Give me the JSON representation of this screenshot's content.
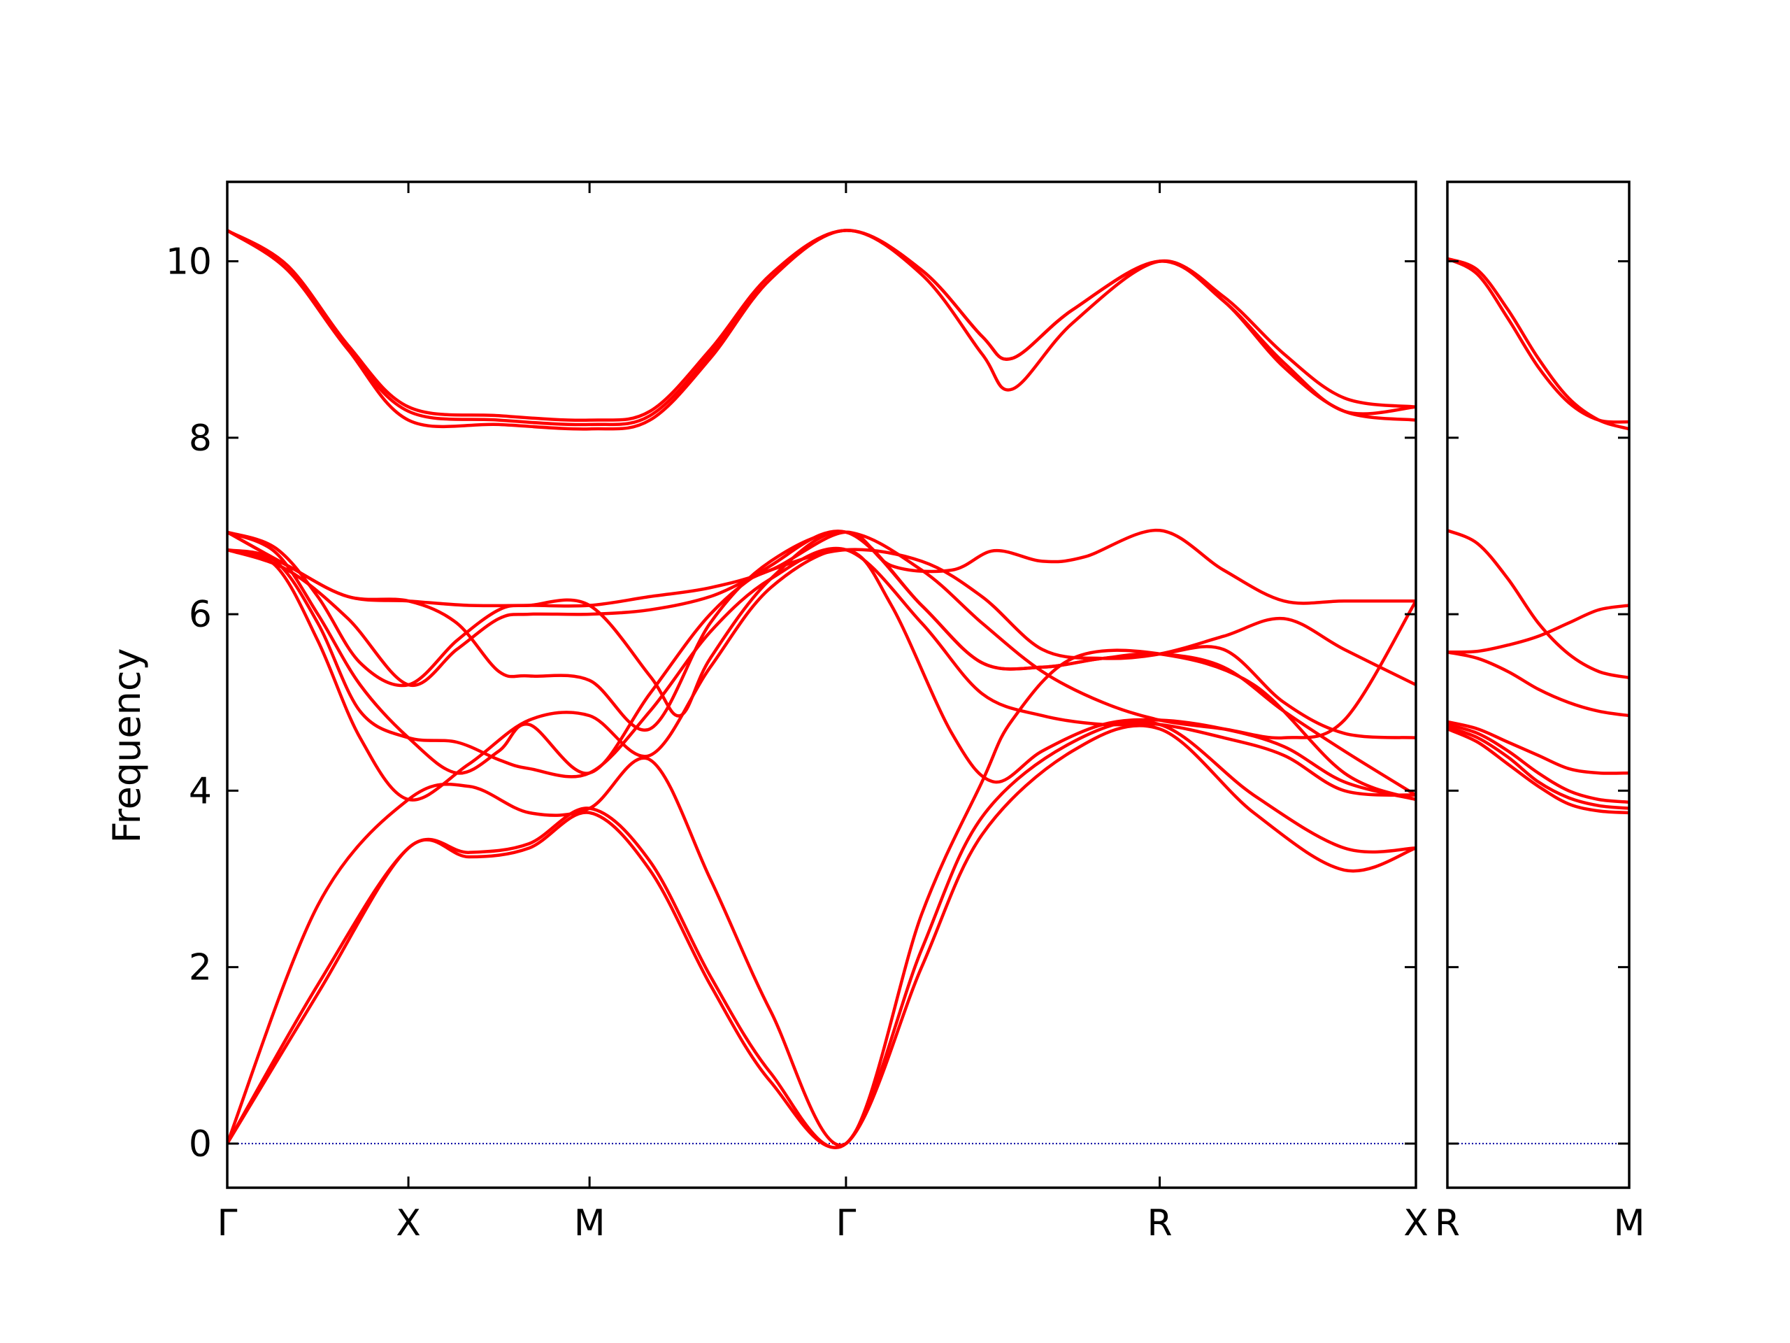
{
  "chart_data": {
    "type": "line",
    "ylabel": "Frequency",
    "ylim": [
      -0.5,
      10.9
    ],
    "yticks": [
      0,
      2,
      4,
      6,
      8,
      10
    ],
    "grid": false,
    "legend": "none",
    "line_color": "#ff0000",
    "zero_line_color": "#0000a0",
    "panels": [
      {
        "name": "main",
        "xticks": [
          {
            "x": 0,
            "label": "Γ"
          },
          {
            "x": 0.3,
            "label": "X"
          },
          {
            "x": 0.6,
            "label": "M"
          },
          {
            "x": 1.0247,
            "label": "Γ"
          },
          {
            "x": 1.5443,
            "label": "R"
          },
          {
            "x": 1.9686,
            "label": "X"
          }
        ],
        "xlim": [
          0,
          1.9686
        ],
        "series": [
          {
            "x": [
              0,
              0.15,
              0.3,
              0.4,
              0.5,
              0.6,
              0.7,
              0.8,
              0.9,
              1.0247,
              1.15,
              1.25,
              1.4,
              1.5443,
              1.7,
              1.85,
              1.9686
            ],
            "y": [
              0,
              1.7,
              3.35,
              3.25,
              3.35,
              3.75,
              3.1,
              1.8,
              0.7,
              0,
              2.0,
              3.5,
              4.45,
              4.7,
              3.75,
              3.1,
              3.35
            ]
          },
          {
            "x": [
              0,
              0.15,
              0.3,
              0.4,
              0.5,
              0.6,
              0.7,
              0.8,
              0.9,
              1.0247,
              1.15,
              1.25,
              1.4,
              1.5443,
              1.7,
              1.85,
              1.9686
            ],
            "y": [
              0,
              1.8,
              3.35,
              3.3,
              3.4,
              3.8,
              3.2,
              1.9,
              0.8,
              0,
              2.2,
              3.7,
              4.55,
              4.75,
              3.95,
              3.35,
              3.35
            ]
          },
          {
            "x": [
              0,
              0.15,
              0.3,
              0.4,
              0.5,
              0.6,
              0.7,
              0.8,
              0.9,
              1.0247,
              1.15,
              1.25,
              1.3,
              1.4,
              1.5443,
              1.7,
              1.85,
              1.9686
            ],
            "y": [
              0,
              2.7,
              3.9,
              4.05,
              3.75,
              3.8,
              4.35,
              3.0,
              1.5,
              0,
              2.6,
              4.1,
              4.8,
              5.5,
              5.55,
              5.2,
              4.2,
              3.9
            ]
          },
          {
            "x": [
              0,
              0.08,
              0.15,
              0.22,
              0.3,
              0.4,
              0.5,
              0.6,
              0.7,
              0.8,
              0.9,
              1.0247,
              1.1,
              1.2,
              1.27,
              1.35,
              1.45,
              1.5443,
              1.65,
              1.75,
              1.85,
              1.9686
            ],
            "y": [
              6.73,
              6.55,
              5.7,
              4.6,
              3.9,
              4.3,
              4.8,
              4.85,
              4.4,
              5.4,
              6.3,
              6.73,
              6.1,
              4.65,
              4.1,
              4.45,
              4.75,
              4.8,
              4.7,
              4.5,
              4.1,
              3.9
            ]
          },
          {
            "x": [
              0,
              0.08,
              0.15,
              0.22,
              0.3,
              0.38,
              0.45,
              0.5,
              0.6,
              0.7,
              0.8,
              0.9,
              1.0247,
              1.15,
              1.25,
              1.35,
              1.45,
              1.5443,
              1.65,
              1.75,
              1.85,
              1.9686
            ],
            "y": [
              6.73,
              6.6,
              5.9,
              4.9,
              4.6,
              4.55,
              4.35,
              4.25,
              4.2,
              4.9,
              5.8,
              6.4,
              6.73,
              5.9,
              5.1,
              4.85,
              4.75,
              4.75,
              4.6,
              4.4,
              4.0,
              3.95
            ]
          },
          {
            "x": [
              0,
              0.08,
              0.15,
              0.22,
              0.3,
              0.38,
              0.45,
              0.5,
              0.6,
              0.7,
              0.8,
              0.9,
              1.0247,
              1.15,
              1.25,
              1.35,
              1.45,
              1.5443,
              1.65,
              1.75,
              1.85,
              1.9686
            ],
            "y": [
              6.93,
              6.7,
              6.0,
              5.2,
              4.6,
              4.2,
              4.45,
              4.75,
              4.2,
              5.1,
              6.0,
              6.55,
              6.93,
              6.1,
              5.45,
              5.4,
              5.5,
              5.55,
              5.4,
              4.9,
              4.45,
              3.95
            ]
          },
          {
            "x": [
              0,
              0.08,
              0.15,
              0.22,
              0.3,
              0.38,
              0.45,
              0.5,
              0.6,
              0.7,
              0.75,
              0.8,
              0.9,
              1.0247,
              1.15,
              1.25,
              1.35,
              1.45,
              1.5443,
              1.65,
              1.75,
              1.85,
              1.9686
            ],
            "y": [
              6.93,
              6.75,
              6.2,
              5.45,
              5.2,
              5.7,
              6.05,
              6.1,
              6.1,
              5.3,
              4.85,
              5.5,
              6.4,
              6.93,
              6.1,
              5.45,
              5.4,
              5.5,
              5.55,
              5.6,
              5.0,
              4.65,
              4.6
            ]
          },
          {
            "x": [
              0,
              0.1,
              0.2,
              0.3,
              0.38,
              0.45,
              0.5,
              0.6,
              0.7,
              0.8,
              0.9,
              1.0247,
              1.15,
              1.25,
              1.35,
              1.45,
              1.5443,
              1.65,
              1.75,
              1.85,
              1.9686
            ],
            "y": [
              6.93,
              6.55,
              6.2,
              6.15,
              5.9,
              5.35,
              5.3,
              5.25,
              4.7,
              5.9,
              6.6,
              6.93,
              6.5,
              5.9,
              5.35,
              5.0,
              4.8,
              4.7,
              4.6,
              4.8,
              6.15
            ]
          },
          {
            "x": [
              0,
              0.1,
              0.2,
              0.3,
              0.4,
              0.5,
              0.6,
              0.7,
              0.8,
              0.9,
              1.0247,
              1.1,
              1.2,
              1.27,
              1.35,
              1.42,
              1.5443,
              1.65,
              1.75,
              1.85,
              1.9686
            ],
            "y": [
              6.93,
              6.55,
              6.2,
              6.15,
              6.1,
              6.1,
              6.1,
              6.2,
              6.3,
              6.5,
              6.93,
              6.55,
              6.5,
              6.72,
              6.6,
              6.65,
              6.95,
              6.5,
              6.15,
              6.15,
              6.15
            ]
          },
          {
            "x": [
              0,
              0.1,
              0.2,
              0.3,
              0.38,
              0.45,
              0.5,
              0.6,
              0.7,
              0.8,
              0.9,
              1.0247,
              1.15,
              1.25,
              1.35,
              1.45,
              1.5443,
              1.65,
              1.75,
              1.85,
              1.9686
            ],
            "y": [
              6.73,
              6.5,
              5.95,
              5.2,
              5.6,
              5.95,
              6.0,
              6.0,
              6.05,
              6.2,
              6.5,
              6.73,
              6.6,
              6.2,
              5.6,
              5.5,
              5.55,
              5.75,
              5.95,
              5.6,
              5.2
            ]
          },
          {
            "x": [
              0,
              0.1,
              0.2,
              0.3,
              0.45,
              0.6,
              0.7,
              0.8,
              0.9,
              1.0247,
              1.15,
              1.25,
              1.3,
              1.4,
              1.5443,
              1.65,
              1.75,
              1.85,
              1.9686
            ],
            "y": [
              10.35,
              9.9,
              9.0,
              8.2,
              8.15,
              8.1,
              8.2,
              8.9,
              9.8,
              10.35,
              9.85,
              8.95,
              8.55,
              9.3,
              10.0,
              9.55,
              8.8,
              8.3,
              8.2
            ]
          },
          {
            "x": [
              0,
              0.1,
              0.2,
              0.3,
              0.45,
              0.6,
              0.7,
              0.8,
              0.9,
              1.0247,
              1.15,
              1.25,
              1.3,
              1.4,
              1.5443,
              1.65,
              1.75,
              1.85,
              1.9686
            ],
            "y": [
              10.35,
              9.95,
              9.05,
              8.35,
              8.25,
              8.2,
              8.3,
              9.0,
              9.85,
              10.35,
              9.9,
              9.15,
              8.9,
              9.45,
              10.0,
              9.6,
              8.95,
              8.45,
              8.35
            ]
          },
          {
            "x": [
              0,
              0.1,
              0.2,
              0.3,
              0.45,
              0.6,
              0.7,
              0.8,
              0.9,
              1.0247,
              1.15,
              1.25,
              1.3,
              1.4,
              1.5443,
              1.65,
              1.75,
              1.85,
              1.9686
            ],
            "y": [
              10.35,
              9.9,
              9.0,
              8.3,
              8.2,
              8.15,
              8.25,
              8.95,
              9.85,
              10.35,
              9.9,
              9.15,
              8.9,
              9.45,
              10.0,
              9.55,
              8.85,
              8.3,
              8.35
            ]
          }
        ]
      },
      {
        "name": "side",
        "xticks": [
          {
            "x": 0,
            "label": "R"
          },
          {
            "x": 0.3,
            "label": "M"
          }
        ],
        "xlim": [
          0,
          0.3
        ],
        "series": [
          {
            "x": [
              0,
              0.05,
              0.1,
              0.15,
              0.2,
              0.25,
              0.3
            ],
            "y": [
              10.03,
              9.9,
              9.45,
              8.9,
              8.45,
              8.2,
              8.1
            ]
          },
          {
            "x": [
              0,
              0.05,
              0.1,
              0.15,
              0.2,
              0.25,
              0.3
            ],
            "y": [
              10.03,
              9.85,
              9.35,
              8.8,
              8.4,
              8.2,
              8.18
            ]
          },
          {
            "x": [
              0,
              0.05,
              0.1,
              0.15,
              0.2,
              0.25,
              0.3
            ],
            "y": [
              6.95,
              6.8,
              6.4,
              5.9,
              5.55,
              5.35,
              5.28
            ]
          },
          {
            "x": [
              0,
              0.05,
              0.1,
              0.15,
              0.2,
              0.25,
              0.3
            ],
            "y": [
              5.57,
              5.58,
              5.65,
              5.75,
              5.9,
              6.05,
              6.1
            ]
          },
          {
            "x": [
              0,
              0.05,
              0.1,
              0.15,
              0.2,
              0.25,
              0.3
            ],
            "y": [
              5.57,
              5.5,
              5.35,
              5.15,
              5.0,
              4.9,
              4.85
            ]
          },
          {
            "x": [
              0,
              0.05,
              0.1,
              0.15,
              0.2,
              0.25,
              0.3
            ],
            "y": [
              4.78,
              4.7,
              4.55,
              4.4,
              4.25,
              4.2,
              4.2
            ]
          },
          {
            "x": [
              0,
              0.05,
              0.1,
              0.15,
              0.2,
              0.25,
              0.3
            ],
            "y": [
              4.75,
              4.65,
              4.45,
              4.2,
              4.0,
              3.9,
              3.87
            ]
          },
          {
            "x": [
              0,
              0.05,
              0.1,
              0.15,
              0.2,
              0.25,
              0.3
            ],
            "y": [
              4.72,
              4.6,
              4.38,
              4.1,
              3.92,
              3.83,
              3.8
            ]
          },
          {
            "x": [
              0,
              0.05,
              0.1,
              0.15,
              0.2,
              0.25,
              0.3
            ],
            "y": [
              4.7,
              4.55,
              4.3,
              4.05,
              3.85,
              3.77,
              3.75
            ]
          }
        ]
      }
    ]
  }
}
